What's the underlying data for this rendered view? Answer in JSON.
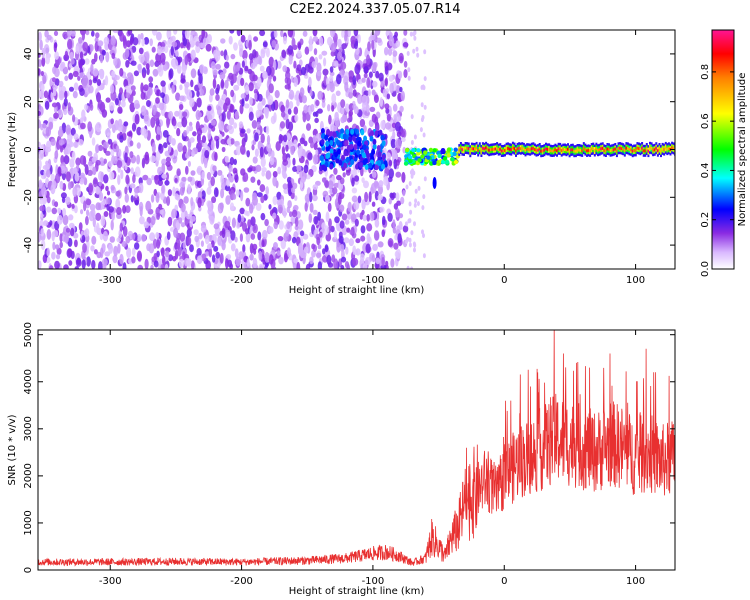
{
  "title": "C2E2.2024.337.05.07.R14",
  "colors": {
    "snr_line": "#e83030",
    "colormap": [
      "#ffffff",
      "#8a2be2",
      "#0000ff",
      "#00ffff",
      "#00ff00",
      "#ffff00",
      "#ff0000",
      "#ff1493"
    ]
  },
  "chart_data": [
    {
      "type": "heatmap",
      "title": "",
      "xlabel": "Height of straight line (km)",
      "ylabel": "Frequency (Hz)",
      "xlim": [
        -355,
        130
      ],
      "ylim": [
        -50,
        50
      ],
      "x_ticks": [
        -300,
        -200,
        -100,
        0,
        100
      ],
      "y_ticks": [
        -40,
        -20,
        0,
        20,
        40
      ],
      "colorbar": {
        "label": "Normalized spectral amplitude",
        "range": [
          0.0,
          0.97
        ],
        "ticks": [
          "0.0",
          "0.2",
          "0.4",
          "0.6",
          "0.8"
        ]
      },
      "regions": [
        {
          "x_range": [
            -355,
            -75
          ],
          "freq_range": [
            -50,
            50
          ],
          "amplitude": 0.05,
          "pattern": "scattered noise"
        },
        {
          "x_range": [
            -140,
            -90
          ],
          "freq_range": [
            -8,
            8
          ],
          "amplitude": 0.25,
          "pattern": "noise cluster"
        },
        {
          "x_range": [
            -75,
            -35
          ],
          "freq_range": [
            -7,
            3
          ],
          "amplitude": 0.5,
          "pattern": "transition"
        },
        {
          "x_range": [
            -35,
            130
          ],
          "freq_range": [
            -1.5,
            1.5
          ],
          "amplitude": 0.95,
          "pattern": "narrow carrier"
        }
      ]
    },
    {
      "type": "line",
      "title": "",
      "xlabel": "Height of straight line (km)",
      "ylabel": "SNR (10 * v/v)",
      "xlim": [
        -355,
        130
      ],
      "ylim": [
        0,
        5100
      ],
      "x_ticks": [
        -300,
        -200,
        -100,
        0,
        100
      ],
      "y_ticks": [
        0,
        1000,
        2000,
        3000,
        4000,
        5000
      ],
      "series": [
        {
          "x": [
            -355,
            -300,
            -250,
            -200,
            -150,
            -120,
            -100,
            -90,
            -80,
            -70,
            -60,
            -55,
            -50,
            -45,
            -40,
            -35,
            -30,
            -25,
            -20,
            -15,
            -10,
            -5,
            0,
            5,
            10,
            20,
            30,
            40,
            50,
            60,
            70,
            80,
            90,
            100,
            110,
            120,
            130
          ],
          "y": [
            170,
            170,
            180,
            170,
            200,
            250,
            350,
            380,
            300,
            150,
            250,
            700,
            500,
            300,
            700,
            900,
            1400,
            1600,
            1700,
            1900,
            1800,
            1600,
            2000,
            2100,
            2300,
            2400,
            2600,
            2800,
            2700,
            2600,
            2500,
            2700,
            2600,
            2400,
            2500,
            2300,
            2400
          ],
          "y_peaks": [
            {
              "x": 38,
              "y": 5200
            },
            {
              "x": 45,
              "y": 4600
            },
            {
              "x": 55,
              "y": 4400
            },
            {
              "x": 65,
              "y": 4300
            },
            {
              "x": 108,
              "y": 4700
            },
            {
              "x": 20,
              "y": 3900
            },
            {
              "x": 5,
              "y": 3600
            }
          ]
        }
      ]
    }
  ]
}
